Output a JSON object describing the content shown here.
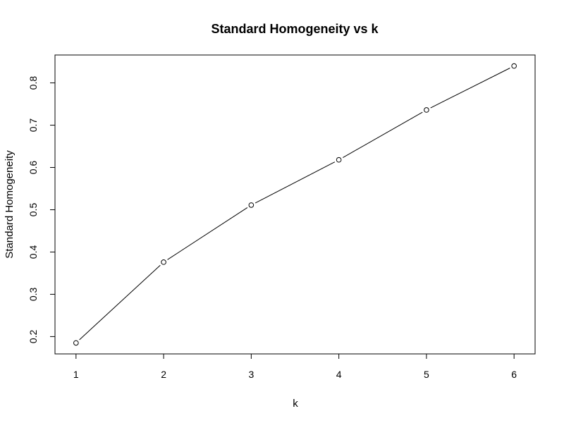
{
  "chart_data": {
    "type": "line",
    "title": "Standard Homogeneity vs k",
    "xlabel": "k",
    "ylabel": "Standard Homogeneity",
    "x": [
      1,
      2,
      3,
      4,
      5,
      6
    ],
    "x_ticks": [
      "1",
      "2",
      "3",
      "4",
      "5",
      "6"
    ],
    "y_ticks": [
      "0.2",
      "0.3",
      "0.4",
      "0.5",
      "0.6",
      "0.7",
      "0.8"
    ],
    "series": [
      {
        "values": [
          0.185,
          0.376,
          0.511,
          0.618,
          0.736,
          0.84
        ]
      }
    ],
    "xlim": [
      0.76,
      6.24
    ],
    "ylim": [
      0.159,
      0.866
    ],
    "grid": false,
    "markers": "open-circle",
    "line_color": "#000000"
  }
}
